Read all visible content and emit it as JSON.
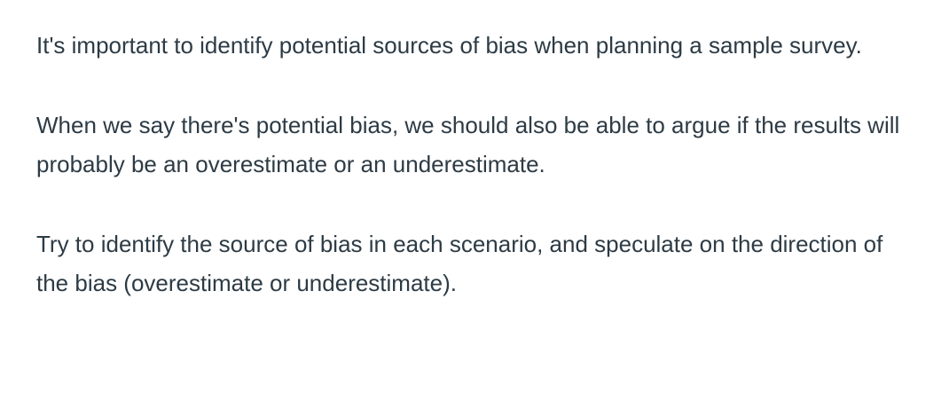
{
  "paragraphs": [
    "It's important to identify potential sources of bias when planning a sample survey.",
    "When we say there's potential bias, we should also be able to argue if the results will probably be an overestimate or an underestimate.",
    "Try to identify the source of bias in each scenario, and speculate on the direction of the bias (overestimate or underestimate)."
  ]
}
